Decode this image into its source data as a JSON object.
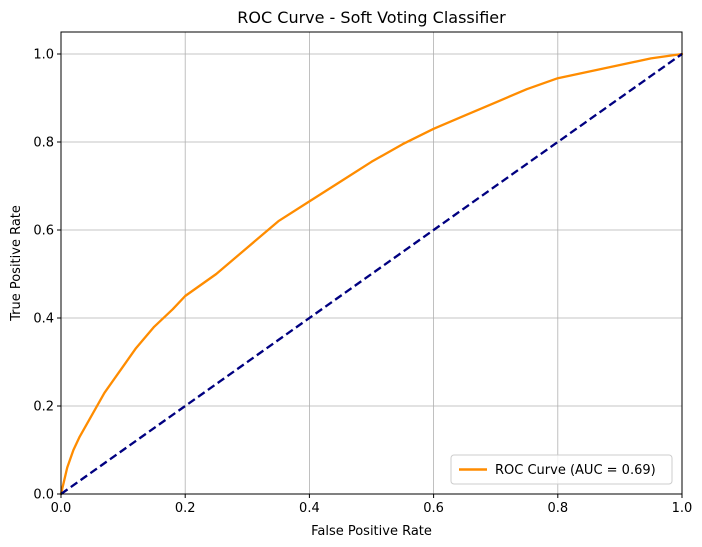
{
  "colors": {
    "roc": "#ff8c00",
    "diagonal": "#000080",
    "grid": "#b0b0b0",
    "axes": "#000000"
  },
  "chart_data": {
    "type": "line",
    "title": "ROC Curve - Soft Voting Classifier",
    "xlabel": "False Positive Rate",
    "ylabel": "True Positive Rate",
    "xlim": [
      0.0,
      1.0
    ],
    "ylim": [
      0.0,
      1.05
    ],
    "xticks": [
      "0.0",
      "0.2",
      "0.4",
      "0.6",
      "0.8",
      "1.0"
    ],
    "yticks": [
      "0.0",
      "0.2",
      "0.4",
      "0.6",
      "0.8",
      "1.0"
    ],
    "grid": true,
    "legend_position": "lower right",
    "series": [
      {
        "name": "ROC Curve (AUC = 0.69)",
        "style": "solid",
        "x": [
          0.0,
          0.005,
          0.01,
          0.02,
          0.03,
          0.05,
          0.07,
          0.1,
          0.12,
          0.15,
          0.18,
          0.2,
          0.25,
          0.3,
          0.35,
          0.4,
          0.45,
          0.5,
          0.55,
          0.6,
          0.65,
          0.7,
          0.75,
          0.8,
          0.85,
          0.9,
          0.95,
          1.0
        ],
        "y": [
          0.0,
          0.03,
          0.06,
          0.1,
          0.13,
          0.18,
          0.23,
          0.29,
          0.33,
          0.38,
          0.42,
          0.45,
          0.5,
          0.56,
          0.62,
          0.665,
          0.71,
          0.755,
          0.795,
          0.83,
          0.86,
          0.89,
          0.92,
          0.945,
          0.96,
          0.975,
          0.99,
          1.0
        ]
      },
      {
        "style": "dashed",
        "x": [
          0.0,
          1.0
        ],
        "y": [
          0.0,
          1.0
        ]
      }
    ]
  }
}
